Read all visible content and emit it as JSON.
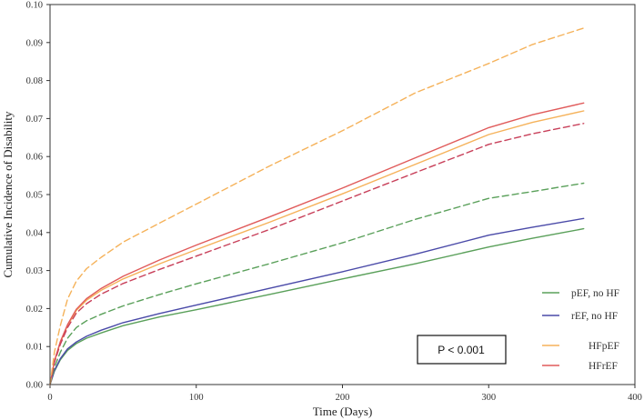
{
  "chart_data": {
    "type": "line",
    "xlabel": "Time (Days)",
    "ylabel": "Cumulative Incidence of Disability",
    "xlim": [
      0,
      400
    ],
    "ylim": [
      0,
      0.1
    ],
    "xticks": [
      0,
      100,
      200,
      300,
      400
    ],
    "xtick_labels": [
      "0",
      "100",
      "200",
      "300",
      "400"
    ],
    "yticks": [
      0,
      0.01,
      0.02,
      0.03,
      0.04,
      0.05,
      0.06,
      0.07,
      0.08,
      0.09,
      0.1
    ],
    "ytick_labels": [
      "0.00",
      "0.01",
      "0.02",
      "0.03",
      "0.04",
      "0.05",
      "0.06",
      "0.07",
      "0.08",
      "0.09",
      "0.10"
    ],
    "grid": false,
    "legend_position": "bottom-right",
    "annotation": "P < 0.001",
    "series": [
      {
        "name": "pEF, no HF",
        "color": "#5aa05a",
        "dash": "solid",
        "x": [
          0,
          3,
          7,
          12,
          18,
          25,
          35,
          50,
          75,
          100,
          150,
          200,
          250,
          300,
          330,
          365
        ],
        "y": [
          0.0,
          0.0035,
          0.0065,
          0.009,
          0.0108,
          0.0122,
          0.0136,
          0.0155,
          0.0178,
          0.0197,
          0.0237,
          0.0278,
          0.0318,
          0.0362,
          0.0385,
          0.041
        ]
      },
      {
        "name": "rEF, no HF",
        "color": "#4a4aa8",
        "dash": "solid",
        "x": [
          0,
          3,
          7,
          12,
          18,
          25,
          35,
          50,
          75,
          100,
          150,
          200,
          250,
          300,
          330,
          365
        ],
        "y": [
          0.0,
          0.0037,
          0.0068,
          0.0094,
          0.0112,
          0.0127,
          0.0143,
          0.0163,
          0.0187,
          0.0209,
          0.0253,
          0.0297,
          0.0343,
          0.0393,
          0.0414,
          0.0437
        ]
      },
      {
        "name": "HFpEF",
        "color": "#f5b25a",
        "dash": "solid",
        "x": [
          0,
          3,
          7,
          12,
          18,
          25,
          35,
          50,
          75,
          100,
          150,
          200,
          250,
          300,
          330,
          365
        ],
        "y": [
          0.0,
          0.006,
          0.011,
          0.0155,
          0.0195,
          0.0222,
          0.0248,
          0.0278,
          0.0318,
          0.0355,
          0.0427,
          0.0502,
          0.058,
          0.0658,
          0.069,
          0.072
        ]
      },
      {
        "name": "HFrEF",
        "color": "#e05a5a",
        "dash": "solid",
        "x": [
          0,
          3,
          7,
          12,
          18,
          25,
          35,
          50,
          75,
          100,
          150,
          200,
          250,
          300,
          330,
          365
        ],
        "y": [
          0.0,
          0.0062,
          0.0113,
          0.0158,
          0.0198,
          0.0226,
          0.0253,
          0.0285,
          0.0328,
          0.0367,
          0.0441,
          0.0517,
          0.0597,
          0.0676,
          0.071,
          0.0741
        ]
      },
      {
        "color": "#5aa05a",
        "dash": "dashed",
        "x": [
          0,
          3,
          7,
          12,
          18,
          25,
          35,
          50,
          75,
          100,
          150,
          200,
          250,
          300,
          330,
          365
        ],
        "y": [
          0.0,
          0.0045,
          0.0085,
          0.0122,
          0.015,
          0.0168,
          0.0185,
          0.0207,
          0.0237,
          0.0265,
          0.0318,
          0.0373,
          0.0435,
          0.049,
          0.0508,
          0.053
        ]
      },
      {
        "color": "#c8405a",
        "dash": "dashed",
        "x": [
          0,
          3,
          7,
          12,
          18,
          25,
          35,
          50,
          75,
          100,
          150,
          200,
          250,
          300,
          330,
          365
        ],
        "y": [
          0.0,
          0.0058,
          0.0106,
          0.015,
          0.0188,
          0.0213,
          0.0238,
          0.0266,
          0.0303,
          0.0338,
          0.0408,
          0.0483,
          0.0558,
          0.0632,
          0.066,
          0.0687
        ]
      },
      {
        "color": "#f5b25a",
        "dash": "dashed",
        "x": [
          0,
          3,
          7,
          12,
          18,
          25,
          35,
          50,
          75,
          100,
          150,
          200,
          250,
          300,
          330,
          365
        ],
        "y": [
          0.0,
          0.0085,
          0.0155,
          0.0225,
          0.0272,
          0.0305,
          0.0335,
          0.0375,
          0.0425,
          0.0475,
          0.0575,
          0.0668,
          0.0768,
          0.0845,
          0.0895,
          0.0938
        ]
      }
    ]
  }
}
